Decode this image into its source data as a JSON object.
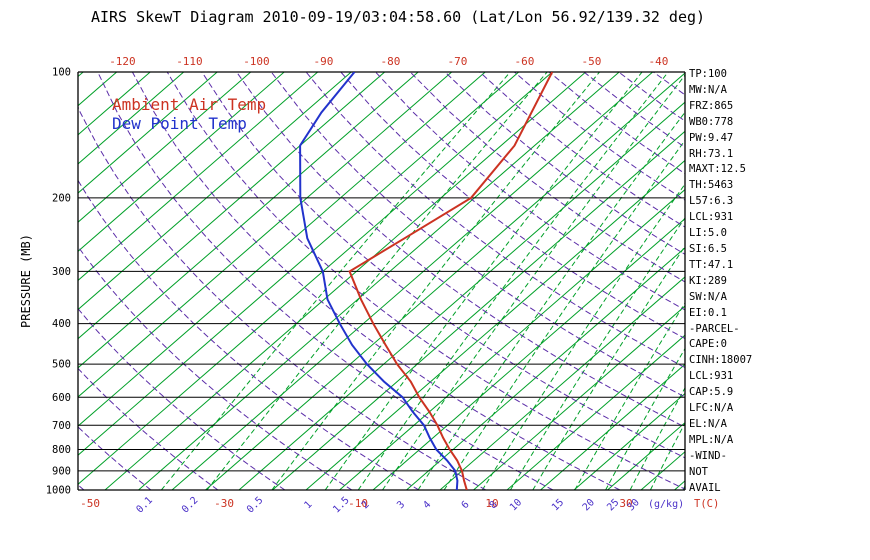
{
  "title": "AIRS SkewT Diagram 2010-09-19/03:04:58.60 (Lat/Lon 56.92/139.32 deg)",
  "legend": {
    "ambient": "Ambient Air Temp",
    "dew_point": "Dew Point Temp"
  },
  "colors": {
    "background": "#ffffff",
    "frame": "#000000",
    "isotherm_green": "#00A028",
    "adiabat_purple": "#5B2DA8",
    "mixing_label_purple": "#4B31C8",
    "temp_red": "#CC3322",
    "dew_blue": "#2233CC",
    "text_black": "#000000"
  },
  "chart_data": {
    "type": "line",
    "variant": "skew-t-log-p",
    "title": "AIRS SkewT Diagram 2010-09-19/03:04:58.60 (Lat/Lon 56.92/139.32 deg)",
    "pressure_axis": {
      "label": "PRESSURE (MB)",
      "scale": "log",
      "range": [
        100,
        1000
      ],
      "ticks": [
        100,
        200,
        300,
        400,
        500,
        600,
        700,
        800,
        900,
        1000
      ]
    },
    "temp_axis": {
      "unit": "T(C)",
      "top_ticks": [
        -120,
        -110,
        -100,
        -90,
        -80,
        -70,
        -60,
        -50,
        -40
      ],
      "bottom_ticks": [
        -50,
        -30,
        -10,
        10,
        30
      ]
    },
    "mixing_ratio_axis": {
      "unit": "(g/kg)",
      "ticks": [
        0.1,
        0.2,
        0.5,
        1,
        1.5,
        2,
        3,
        4,
        6,
        8,
        10,
        15,
        20,
        25,
        30
      ]
    },
    "grid": {
      "isotherms_c": {
        "min": -140,
        "max": 45,
        "step": 5
      },
      "dry_adiabats_k": {
        "min": 220,
        "max": 470,
        "step": 10
      },
      "mixing_ratio_lines": [
        0.1,
        0.2,
        0.5,
        1,
        1.5,
        2,
        3,
        4,
        6,
        8,
        10,
        15,
        20,
        25,
        30,
        40
      ]
    },
    "series": [
      {
        "name": "Ambient Air Temp",
        "color_key": "temp_red",
        "points": [
          [
            1000,
            4.0
          ],
          [
            950,
            2.0
          ],
          [
            900,
            0.0
          ],
          [
            850,
            -2.5
          ],
          [
            800,
            -5.5
          ],
          [
            750,
            -8.5
          ],
          [
            700,
            -11.5
          ],
          [
            650,
            -15.0
          ],
          [
            600,
            -19.0
          ],
          [
            550,
            -23.0
          ],
          [
            500,
            -28.0
          ],
          [
            450,
            -33.0
          ],
          [
            400,
            -38.5
          ],
          [
            350,
            -44.5
          ],
          [
            300,
            -51.0
          ],
          [
            250,
            -48.5
          ],
          [
            200,
            -45.5
          ],
          [
            150,
            -48.0
          ],
          [
            100,
            -55.0
          ]
        ]
      },
      {
        "name": "Dew Point Temp",
        "color_key": "dew_blue",
        "points": [
          [
            1000,
            2.5
          ],
          [
            950,
            1.0
          ],
          [
            900,
            -1.0
          ],
          [
            850,
            -4.0
          ],
          [
            800,
            -7.5
          ],
          [
            750,
            -10.5
          ],
          [
            700,
            -13.5
          ],
          [
            650,
            -17.5
          ],
          [
            600,
            -21.5
          ],
          [
            550,
            -27.0
          ],
          [
            500,
            -32.5
          ],
          [
            450,
            -38.0
          ],
          [
            400,
            -43.5
          ],
          [
            350,
            -49.5
          ],
          [
            300,
            -55.0
          ],
          [
            250,
            -63.0
          ],
          [
            200,
            -71.0
          ],
          [
            150,
            -80.0
          ],
          [
            125,
            -82.5
          ],
          [
            100,
            -84.5
          ]
        ]
      }
    ]
  },
  "stats_panel": {
    "lines": [
      "TP:100",
      "MW:N/A",
      "FRZ:865",
      "WB0:778",
      "PW:9.47",
      "RH:73.1",
      "MAXT:12.5",
      "TH:5463",
      "L57:6.3",
      "LCL:931",
      "LI:5.0",
      "SI:6.5",
      "TT:47.1",
      "KI:289",
      "SW:N/A",
      "EI:0.1",
      "-PARCEL-",
      "CAPE:0",
      "CINH:18007",
      "LCL:931",
      "CAP:5.9",
      "LFC:N/A",
      "EL:N/A",
      "MPL:N/A",
      "-WIND-",
      "NOT",
      "AVAIL"
    ]
  }
}
